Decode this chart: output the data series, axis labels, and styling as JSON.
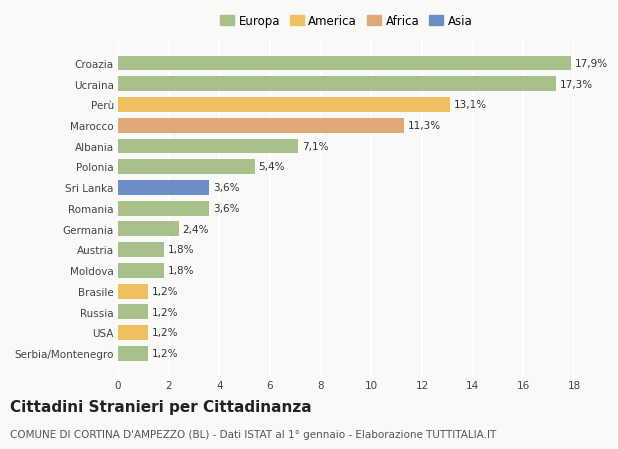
{
  "categories": [
    "Serbia/Montenegro",
    "USA",
    "Russia",
    "Brasile",
    "Moldova",
    "Austria",
    "Germania",
    "Romania",
    "Sri Lanka",
    "Polonia",
    "Albania",
    "Marocco",
    "Perù",
    "Ucraina",
    "Croazia"
  ],
  "values": [
    1.2,
    1.2,
    1.2,
    1.2,
    1.8,
    1.8,
    2.4,
    3.6,
    3.6,
    5.4,
    7.1,
    11.3,
    13.1,
    17.3,
    17.9
  ],
  "labels": [
    "1,2%",
    "1,2%",
    "1,2%",
    "1,2%",
    "1,8%",
    "1,8%",
    "2,4%",
    "3,6%",
    "3,6%",
    "5,4%",
    "7,1%",
    "11,3%",
    "13,1%",
    "17,3%",
    "17,9%"
  ],
  "colors": [
    "#a8c08a",
    "#f0c060",
    "#a8c08a",
    "#f0c060",
    "#a8c08a",
    "#a8c08a",
    "#a8c08a",
    "#a8c08a",
    "#6b8ec7",
    "#a8c08a",
    "#a8c08a",
    "#e0a878",
    "#f0c060",
    "#a8c08a",
    "#a8c08a"
  ],
  "legend": [
    {
      "label": "Europa",
      "color": "#a8c08a"
    },
    {
      "label": "America",
      "color": "#f0c060"
    },
    {
      "label": "Africa",
      "color": "#e0a878"
    },
    {
      "label": "Asia",
      "color": "#6b8ec7"
    }
  ],
  "title": "Cittadini Stranieri per Cittadinanza",
  "subtitle": "COMUNE DI CORTINA D'AMPEZZO (BL) - Dati ISTAT al 1° gennaio - Elaborazione TUTTITALIA.IT",
  "xlim": [
    0,
    18
  ],
  "xticks": [
    0,
    2,
    4,
    6,
    8,
    10,
    12,
    14,
    16,
    18
  ],
  "background_color": "#f9f9f7",
  "plot_background": "#f9f9f7",
  "grid_color": "#ffffff",
  "bar_height": 0.72,
  "title_fontsize": 11,
  "subtitle_fontsize": 7.5,
  "label_fontsize": 7.5,
  "tick_fontsize": 7.5,
  "legend_fontsize": 8.5
}
